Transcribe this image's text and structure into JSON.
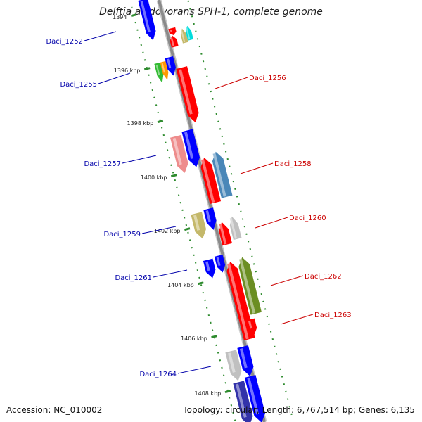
{
  "title": "Delftia acidovorans SPH-1, complete genome",
  "footer": {
    "accession": "Accession: NC_010002",
    "topology": "Topology: circular; Length: 6,767,514 bp; Genes: 6,135"
  },
  "colors": {
    "backbone": "#8a8a8a",
    "backbone_light": "#c8c8c8",
    "guide": "#2e8b2e",
    "forward_label": "#0000aa",
    "reverse_label": "#cc0000",
    "red": "#ff0000",
    "blue": "#0000ff",
    "pink": "#ee8c8c",
    "steel": "#4a87b8",
    "khaki": "#c4b86a",
    "olive": "#6b8e23",
    "gray": "#c0c0c0",
    "green": "#33bb33",
    "orange": "#ff9900",
    "cyan": "#00dddd",
    "navy": "#3333aa"
  },
  "ticks": [
    {
      "label": "1394"
    },
    {
      "label": "1396 kbp"
    },
    {
      "label": "1398 kbp"
    },
    {
      "label": "1400 kbp"
    },
    {
      "label": "1402 kbp"
    },
    {
      "label": "1404 kbp"
    },
    {
      "label": "1406 kbp"
    },
    {
      "label": "1408 kbp"
    }
  ],
  "gene_labels": [
    {
      "text": "Daci_1252",
      "strand": "forward"
    },
    {
      "text": "Daci_1255",
      "strand": "forward"
    },
    {
      "text": "Daci_1257",
      "strand": "forward"
    },
    {
      "text": "Daci_1259",
      "strand": "forward"
    },
    {
      "text": "Daci_1261",
      "strand": "forward"
    },
    {
      "text": "Daci_1264",
      "strand": "forward"
    },
    {
      "text": "Daci_1256",
      "strand": "reverse"
    },
    {
      "text": "Daci_1258",
      "strand": "reverse"
    },
    {
      "text": "Daci_1260",
      "strand": "reverse"
    },
    {
      "text": "Daci_1262",
      "strand": "reverse"
    },
    {
      "text": "Daci_1263",
      "strand": "reverse"
    }
  ]
}
